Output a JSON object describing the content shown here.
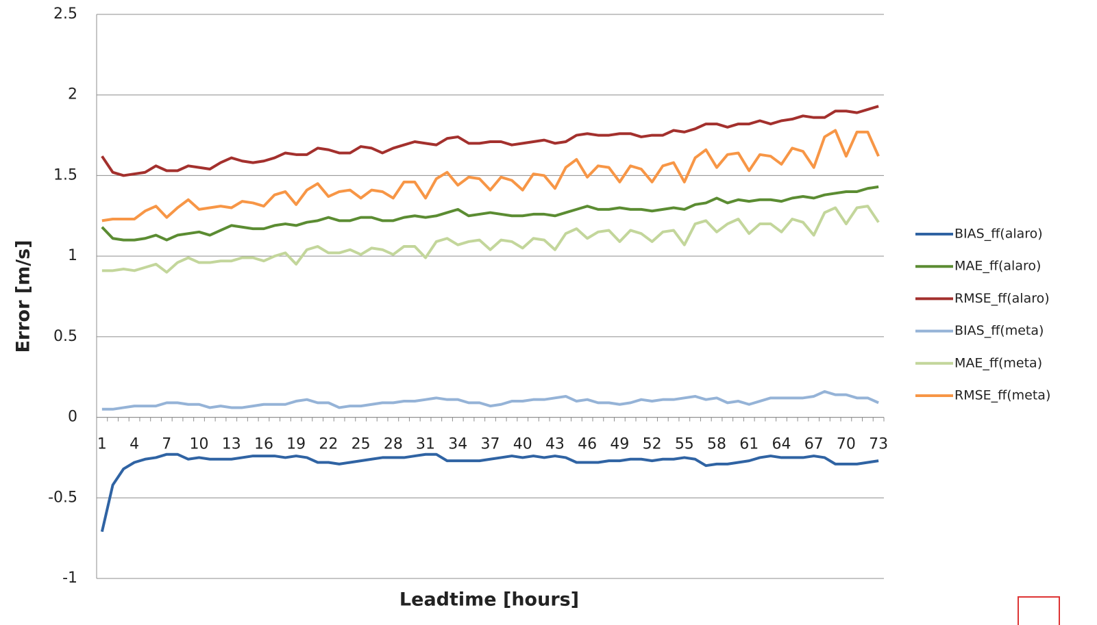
{
  "chart_data": {
    "type": "line",
    "x_label": "Leadtime [hours]",
    "y_label": "Error [m/s]",
    "categories": [
      "1",
      null,
      null,
      "4",
      null,
      null,
      "7",
      null,
      null,
      "10",
      null,
      null,
      "13",
      null,
      null,
      "16",
      null,
      null,
      "19",
      null,
      null,
      "22",
      null,
      null,
      "25",
      null,
      null,
      "28",
      null,
      null,
      "31",
      null,
      null,
      "34",
      null,
      null,
      "37",
      null,
      null,
      "40",
      null,
      null,
      "43",
      null,
      null,
      "46",
      null,
      null,
      "49",
      null,
      null,
      "52",
      null,
      null,
      "55",
      null,
      null,
      "58",
      null,
      null,
      "61",
      null,
      null,
      "64",
      null,
      null,
      "67",
      null,
      null,
      "70",
      null,
      null,
      "73"
    ],
    "ylim": [
      -1,
      2.5
    ],
    "yticks": [
      -1,
      -0.5,
      0,
      0.5,
      1,
      1.5,
      2,
      2.5
    ],
    "grid": true,
    "legend": "right",
    "series": [
      {
        "name": "BIAS_ff(alaro)",
        "color": "#2f63a3",
        "values": [
          -0.71,
          -0.42,
          -0.32,
          -0.28,
          -0.26,
          -0.25,
          -0.23,
          -0.23,
          -0.26,
          -0.25,
          -0.26,
          -0.26,
          -0.26,
          -0.25,
          -0.24,
          -0.24,
          -0.24,
          -0.25,
          -0.24,
          -0.25,
          -0.28,
          -0.28,
          -0.29,
          -0.28,
          -0.27,
          -0.26,
          -0.25,
          -0.25,
          -0.25,
          -0.24,
          -0.23,
          -0.23,
          -0.27,
          -0.27,
          -0.27,
          -0.27,
          -0.26,
          -0.25,
          -0.24,
          -0.25,
          -0.24,
          -0.25,
          -0.24,
          -0.25,
          -0.28,
          -0.28,
          -0.28,
          -0.27,
          -0.27,
          -0.26,
          -0.26,
          -0.27,
          -0.26,
          -0.26,
          -0.25,
          -0.26,
          -0.3,
          -0.29,
          -0.29,
          -0.28,
          -0.27,
          -0.25,
          -0.24,
          -0.25,
          -0.25,
          -0.25,
          -0.24,
          -0.25,
          -0.29,
          -0.29,
          -0.29,
          -0.28,
          -0.27
        ]
      },
      {
        "name": "MAE_ff(alaro)",
        "color": "#5b8c32",
        "values": [
          1.18,
          1.11,
          1.1,
          1.1,
          1.11,
          1.13,
          1.1,
          1.13,
          1.14,
          1.15,
          1.13,
          1.16,
          1.19,
          1.18,
          1.17,
          1.17,
          1.19,
          1.2,
          1.19,
          1.21,
          1.22,
          1.24,
          1.22,
          1.22,
          1.24,
          1.24,
          1.22,
          1.22,
          1.24,
          1.25,
          1.24,
          1.25,
          1.27,
          1.29,
          1.25,
          1.26,
          1.27,
          1.26,
          1.25,
          1.25,
          1.26,
          1.26,
          1.25,
          1.27,
          1.29,
          1.31,
          1.29,
          1.29,
          1.3,
          1.29,
          1.29,
          1.28,
          1.29,
          1.3,
          1.29,
          1.32,
          1.33,
          1.36,
          1.33,
          1.35,
          1.34,
          1.35,
          1.35,
          1.34,
          1.36,
          1.37,
          1.36,
          1.38,
          1.39,
          1.4,
          1.4,
          1.42,
          1.43
        ]
      },
      {
        "name": "RMSE_ff(alaro)",
        "color": "#a3302d",
        "values": [
          1.62,
          1.52,
          1.5,
          1.51,
          1.52,
          1.56,
          1.53,
          1.53,
          1.56,
          1.55,
          1.54,
          1.58,
          1.61,
          1.59,
          1.58,
          1.59,
          1.61,
          1.64,
          1.63,
          1.63,
          1.67,
          1.66,
          1.64,
          1.64,
          1.68,
          1.67,
          1.64,
          1.67,
          1.69,
          1.71,
          1.7,
          1.69,
          1.73,
          1.74,
          1.7,
          1.7,
          1.71,
          1.71,
          1.69,
          1.7,
          1.71,
          1.72,
          1.7,
          1.71,
          1.75,
          1.76,
          1.75,
          1.75,
          1.76,
          1.76,
          1.74,
          1.75,
          1.75,
          1.78,
          1.77,
          1.79,
          1.82,
          1.82,
          1.8,
          1.82,
          1.82,
          1.84,
          1.82,
          1.84,
          1.85,
          1.87,
          1.86,
          1.86,
          1.9,
          1.9,
          1.89,
          1.91,
          1.93
        ]
      },
      {
        "name": "BIAS_ff(meta)",
        "color": "#95b3d7",
        "values": [
          0.05,
          0.05,
          0.06,
          0.07,
          0.07,
          0.07,
          0.09,
          0.09,
          0.08,
          0.08,
          0.06,
          0.07,
          0.06,
          0.06,
          0.07,
          0.08,
          0.08,
          0.08,
          0.1,
          0.11,
          0.09,
          0.09,
          0.06,
          0.07,
          0.07,
          0.08,
          0.09,
          0.09,
          0.1,
          0.1,
          0.11,
          0.12,
          0.11,
          0.11,
          0.09,
          0.09,
          0.07,
          0.08,
          0.1,
          0.1,
          0.11,
          0.11,
          0.12,
          0.13,
          0.1,
          0.11,
          0.09,
          0.09,
          0.08,
          0.09,
          0.11,
          0.1,
          0.11,
          0.11,
          0.12,
          0.13,
          0.11,
          0.12,
          0.09,
          0.1,
          0.08,
          0.1,
          0.12,
          0.12,
          0.12,
          0.12,
          0.13,
          0.16,
          0.14,
          0.14,
          0.12,
          0.12,
          0.09
        ]
      },
      {
        "name": "MAE_ff(meta)",
        "color": "#c3d69b",
        "values": [
          0.91,
          0.91,
          0.92,
          0.91,
          0.93,
          0.95,
          0.9,
          0.96,
          0.99,
          0.96,
          0.96,
          0.97,
          0.97,
          0.99,
          0.99,
          0.97,
          1.0,
          1.02,
          0.95,
          1.04,
          1.06,
          1.02,
          1.02,
          1.04,
          1.01,
          1.05,
          1.04,
          1.01,
          1.06,
          1.06,
          0.99,
          1.09,
          1.11,
          1.07,
          1.09,
          1.1,
          1.04,
          1.1,
          1.09,
          1.05,
          1.11,
          1.1,
          1.04,
          1.14,
          1.17,
          1.11,
          1.15,
          1.16,
          1.09,
          1.16,
          1.14,
          1.09,
          1.15,
          1.16,
          1.07,
          1.2,
          1.22,
          1.15,
          1.2,
          1.23,
          1.14,
          1.2,
          1.2,
          1.15,
          1.23,
          1.21,
          1.13,
          1.27,
          1.3,
          1.2,
          1.3,
          1.31,
          1.21
        ]
      },
      {
        "name": "RMSE_ff(meta)",
        "color": "#f79646",
        "values": [
          1.22,
          1.23,
          1.23,
          1.23,
          1.28,
          1.31,
          1.24,
          1.3,
          1.35,
          1.29,
          1.3,
          1.31,
          1.3,
          1.34,
          1.33,
          1.31,
          1.38,
          1.4,
          1.32,
          1.41,
          1.45,
          1.37,
          1.4,
          1.41,
          1.36,
          1.41,
          1.4,
          1.36,
          1.46,
          1.46,
          1.36,
          1.48,
          1.52,
          1.44,
          1.49,
          1.48,
          1.41,
          1.49,
          1.47,
          1.41,
          1.51,
          1.5,
          1.42,
          1.55,
          1.6,
          1.49,
          1.56,
          1.55,
          1.46,
          1.56,
          1.54,
          1.46,
          1.56,
          1.58,
          1.46,
          1.61,
          1.66,
          1.55,
          1.63,
          1.64,
          1.53,
          1.63,
          1.62,
          1.57,
          1.67,
          1.65,
          1.55,
          1.74,
          1.78,
          1.62,
          1.77,
          1.77,
          1.62
        ]
      }
    ]
  }
}
